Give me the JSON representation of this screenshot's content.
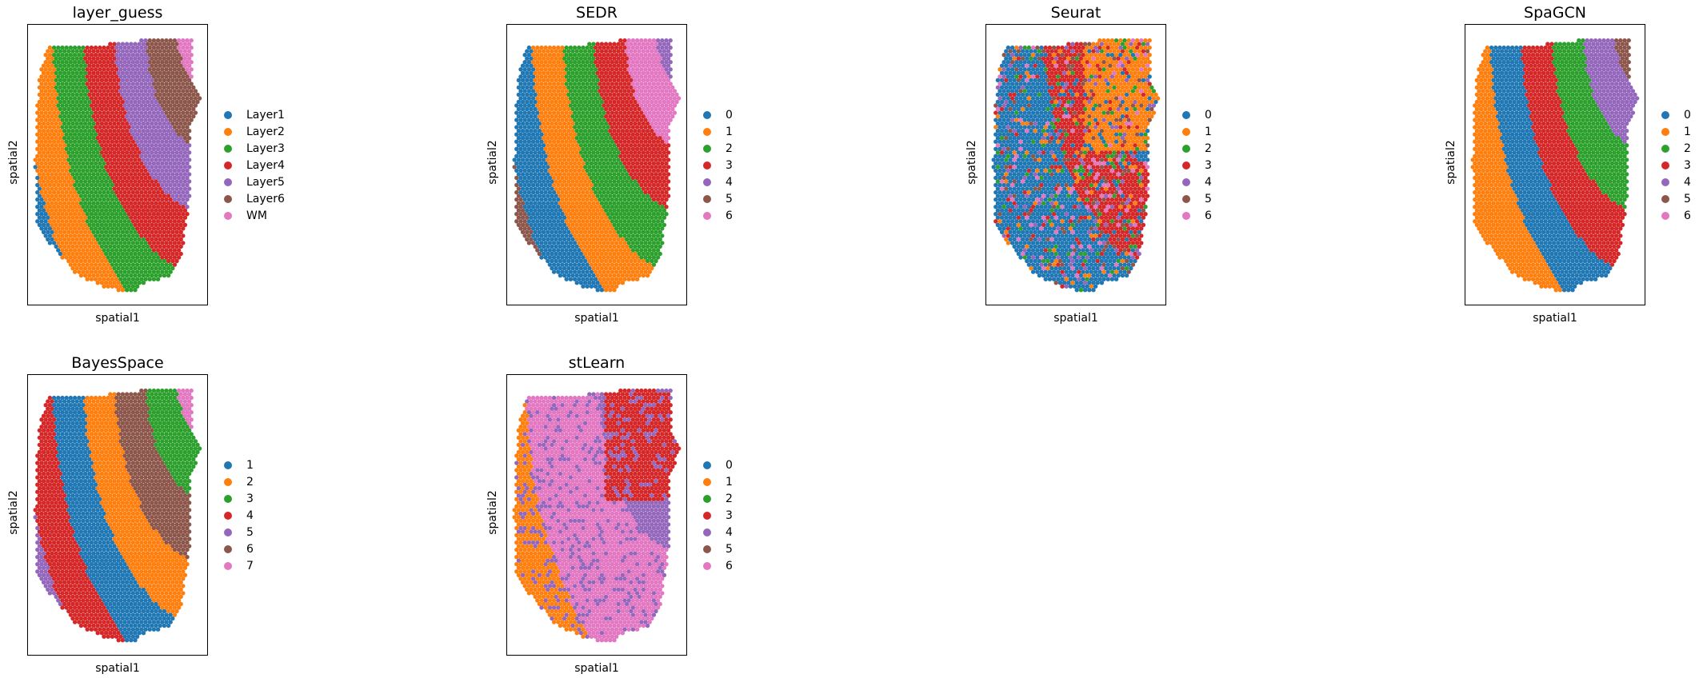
{
  "palette": [
    "#1f77b4",
    "#ff7f0e",
    "#2ca02c",
    "#d62728",
    "#9467bd",
    "#8c564b",
    "#e377c2"
  ],
  "chart_data": [
    {
      "type": "scatter",
      "title": "layer_guess",
      "xlabel": "spatial1",
      "ylabel": "spatial2",
      "legend": {
        "placement": "right",
        "labels": [
          "Layer1",
          "Layer2",
          "Layer3",
          "Layer4",
          "Layer5",
          "Layer6",
          "WM"
        ]
      },
      "grid": false,
      "axis_ticks": false
    },
    {
      "type": "scatter",
      "title": "SEDR",
      "xlabel": "spatial1",
      "ylabel": "spatial2",
      "legend": {
        "placement": "right",
        "labels": [
          "0",
          "1",
          "2",
          "3",
          "4",
          "5",
          "6"
        ]
      },
      "grid": false,
      "axis_ticks": false
    },
    {
      "type": "scatter",
      "title": "Seurat",
      "xlabel": "spatial1",
      "ylabel": "spatial2",
      "legend": {
        "placement": "right",
        "labels": [
          "0",
          "1",
          "2",
          "3",
          "4",
          "5",
          "6"
        ]
      },
      "grid": false,
      "axis_ticks": false
    },
    {
      "type": "scatter",
      "title": "SpaGCN",
      "xlabel": "spatial1",
      "ylabel": "spatial2",
      "legend": {
        "placement": "right",
        "labels": [
          "0",
          "1",
          "2",
          "3",
          "4",
          "5",
          "6"
        ]
      },
      "grid": false,
      "axis_ticks": false
    },
    {
      "type": "scatter",
      "title": "BayesSpace",
      "xlabel": "spatial1",
      "ylabel": "spatial2",
      "legend": {
        "placement": "right",
        "labels": [
          "1",
          "2",
          "3",
          "4",
          "5",
          "6",
          "7"
        ]
      },
      "grid": false,
      "axis_ticks": false
    },
    {
      "type": "scatter",
      "title": "stLearn",
      "xlabel": "spatial1",
      "ylabel": "spatial2",
      "legend": {
        "placement": "right",
        "labels": [
          "0",
          "1",
          "2",
          "3",
          "4",
          "5",
          "6"
        ]
      },
      "grid": false,
      "axis_ticks": false
    }
  ]
}
